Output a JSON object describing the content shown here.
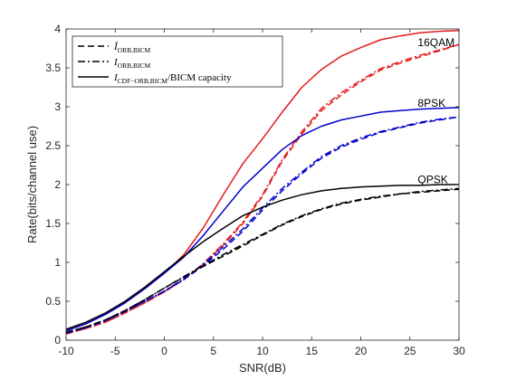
{
  "chart_data": {
    "type": "line",
    "xlabel": "SNR(dB)",
    "ylabel": "Rate(bits/channel use)",
    "xlim": [
      -10,
      30
    ],
    "ylim": [
      0,
      4
    ],
    "xticks": [
      "-10",
      "-5",
      "0",
      "5",
      "10",
      "15",
      "20",
      "25",
      "30"
    ],
    "yticks": [
      "0",
      "0.5",
      "1",
      "1.5",
      "2",
      "2.5",
      "3",
      "3.5",
      "4"
    ],
    "grid": false,
    "legend_position": "top-left",
    "legend": [
      {
        "style": "dashed",
        "main": "Î",
        "sub": "ORB,BICM",
        "tail": ""
      },
      {
        "style": "dashdot",
        "main": "I",
        "sub": "ORB,BICM",
        "tail": ""
      },
      {
        "style": "solid",
        "main": "I",
        "sub": "CDF−ORB,BICM",
        "tail": "/BICM capacity"
      }
    ],
    "series_labels": [
      {
        "text": "16QAM",
        "x": 25.8,
        "y": 3.78
      },
      {
        "text": "8PSK",
        "x": 25.8,
        "y": 3.0
      },
      {
        "text": "QPSK",
        "x": 25.8,
        "y": 2.02
      }
    ],
    "colors": {
      "16QAM": "#e41a1c",
      "8PSK": "#0000cc",
      "QPSK": "#000000"
    },
    "x": [
      -10,
      -8,
      -6,
      -4,
      -2,
      0,
      2,
      4,
      6,
      8,
      10,
      12,
      14,
      16,
      18,
      20,
      22,
      24,
      26,
      28,
      30
    ],
    "series": [
      {
        "group": "16QAM",
        "style": "solid",
        "values": [
          0.12,
          0.21,
          0.33,
          0.48,
          0.66,
          0.86,
          1.1,
          1.45,
          1.87,
          2.27,
          2.59,
          2.93,
          3.25,
          3.48,
          3.65,
          3.76,
          3.86,
          3.91,
          3.95,
          3.97,
          3.98
        ]
      },
      {
        "group": "16QAM",
        "style": "dashed",
        "values": [
          0.08,
          0.15,
          0.23,
          0.35,
          0.48,
          0.62,
          0.78,
          0.98,
          1.22,
          1.5,
          1.85,
          2.3,
          2.65,
          2.95,
          3.15,
          3.32,
          3.47,
          3.56,
          3.64,
          3.72,
          3.8
        ]
      },
      {
        "group": "16QAM",
        "style": "dashdot",
        "values": [
          0.08,
          0.15,
          0.23,
          0.35,
          0.48,
          0.62,
          0.78,
          0.99,
          1.24,
          1.52,
          1.87,
          2.32,
          2.68,
          2.98,
          3.18,
          3.34,
          3.49,
          3.58,
          3.66,
          3.73,
          3.8
        ]
      },
      {
        "group": "8PSK",
        "style": "solid",
        "values": [
          0.12,
          0.21,
          0.33,
          0.48,
          0.66,
          0.86,
          1.07,
          1.35,
          1.66,
          1.97,
          2.21,
          2.45,
          2.63,
          2.75,
          2.83,
          2.88,
          2.93,
          2.95,
          2.97,
          2.98,
          2.99
        ]
      },
      {
        "group": "8PSK",
        "style": "dashed",
        "values": [
          0.09,
          0.16,
          0.25,
          0.37,
          0.5,
          0.63,
          0.78,
          0.96,
          1.17,
          1.4,
          1.67,
          1.92,
          2.14,
          2.34,
          2.48,
          2.58,
          2.67,
          2.73,
          2.79,
          2.83,
          2.87
        ]
      },
      {
        "group": "8PSK",
        "style": "dashdot",
        "values": [
          0.09,
          0.16,
          0.25,
          0.37,
          0.5,
          0.63,
          0.79,
          0.98,
          1.2,
          1.43,
          1.7,
          1.95,
          2.16,
          2.36,
          2.5,
          2.6,
          2.68,
          2.74,
          2.8,
          2.84,
          2.87
        ]
      },
      {
        "group": "QPSK",
        "style": "solid",
        "values": [
          0.14,
          0.23,
          0.35,
          0.5,
          0.68,
          0.88,
          1.08,
          1.27,
          1.44,
          1.6,
          1.71,
          1.8,
          1.87,
          1.92,
          1.95,
          1.97,
          1.98,
          1.99,
          1.99,
          2.0,
          2.0
        ]
      },
      {
        "group": "QPSK",
        "style": "dashed",
        "values": [
          0.1,
          0.17,
          0.26,
          0.38,
          0.52,
          0.67,
          0.81,
          0.95,
          1.08,
          1.21,
          1.35,
          1.48,
          1.59,
          1.68,
          1.75,
          1.8,
          1.84,
          1.88,
          1.9,
          1.92,
          1.94
        ]
      },
      {
        "group": "QPSK",
        "style": "dashdot",
        "values": [
          0.1,
          0.17,
          0.26,
          0.38,
          0.52,
          0.67,
          0.82,
          0.96,
          1.1,
          1.23,
          1.36,
          1.49,
          1.6,
          1.69,
          1.76,
          1.81,
          1.85,
          1.88,
          1.91,
          1.93,
          1.95
        ]
      }
    ]
  }
}
